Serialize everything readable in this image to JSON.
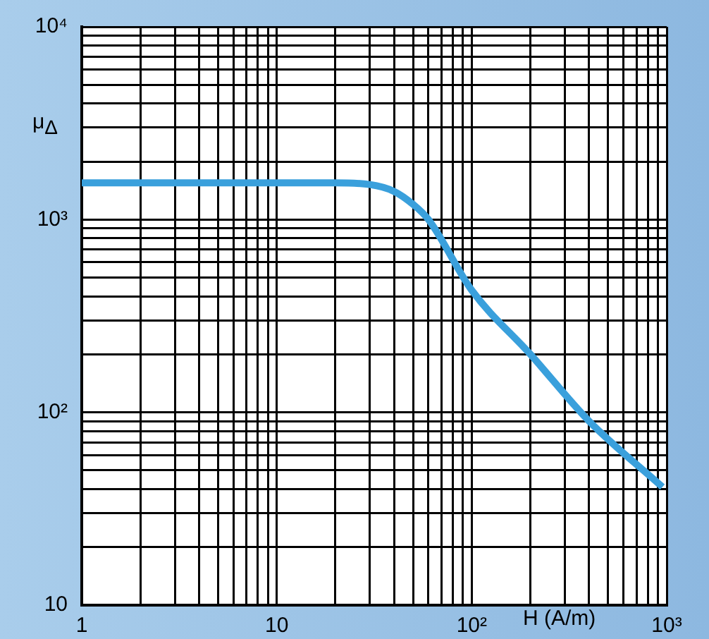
{
  "chart_data": {
    "type": "line",
    "xlabel": "H (A/m)",
    "ylabel": "μ$_{Δ}$",
    "x": [
      1,
      10,
      20,
      30,
      40,
      50,
      60,
      100,
      200,
      400,
      950
    ],
    "series": [
      {
        "color": "#3aa0dc",
        "values": [
          1550,
          1550,
          1550,
          1520,
          1400,
          1200,
          1000,
          430,
          200,
          90,
          41
        ]
      }
    ],
    "log": "xy",
    "grid": true,
    "legend": false,
    "marker": "none",
    "line_style": "solid",
    "xlim": [
      1,
      1000
    ],
    "ylim": [
      10,
      10000
    ],
    "xticks": [
      1,
      {
        "value": 2,
        "label": null
      },
      {
        "value": 3,
        "label": null
      },
      {
        "value": 4,
        "label": null
      },
      {
        "value": 5,
        "label": null
      },
      {
        "value": 6,
        "label": null
      },
      {
        "value": 7,
        "label": null
      },
      {
        "value": 8,
        "label": null
      },
      {
        "value": 9,
        "label": null
      },
      10,
      {
        "value": 20,
        "label": null
      },
      {
        "value": 30,
        "label": null
      },
      {
        "value": 40,
        "label": null
      },
      {
        "value": 50,
        "label": null
      },
      {
        "value": 60,
        "label": null
      },
      {
        "value": 70,
        "label": null
      },
      {
        "value": 80,
        "label": null
      },
      {
        "value": 90,
        "label": null
      },
      {
        "value": 100,
        "label": "10²"
      },
      {
        "value": 200,
        "label": null
      },
      {
        "value": 300,
        "label": null
      },
      {
        "value": 400,
        "label": null
      },
      {
        "value": 500,
        "label": null
      },
      {
        "value": 600,
        "label": null
      },
      {
        "value": 700,
        "label": null
      },
      {
        "value": 800,
        "label": null
      },
      {
        "value": 900,
        "label": null
      },
      {
        "value": 1000,
        "label": "10³"
      }
    ],
    "yticks": [
      10,
      {
        "value": 20,
        "label": null
      },
      {
        "value": 30,
        "label": null
      },
      {
        "value": 40,
        "label": null
      },
      {
        "value": 50,
        "label": null
      },
      {
        "value": 60,
        "label": null
      },
      {
        "value": 70,
        "label": null
      },
      {
        "value": 80,
        "label": null
      },
      {
        "value": 90,
        "label": null
      },
      {
        "value": 100,
        "label": "10²"
      },
      {
        "value": 200,
        "label": null
      },
      {
        "value": 300,
        "label": null
      },
      {
        "value": 400,
        "label": null
      },
      {
        "value": 500,
        "label": null
      },
      {
        "value": 600,
        "label": null
      },
      {
        "value": 700,
        "label": null
      },
      {
        "value": 800,
        "label": null
      },
      {
        "value": 900,
        "label": null
      },
      {
        "value": 1000,
        "label": "10³"
      },
      {
        "value": 2000,
        "label": null
      },
      {
        "value": 3000,
        "label": null
      },
      {
        "value": 4000,
        "label": null
      },
      {
        "value": 5000,
        "label": null
      },
      {
        "value": 6000,
        "label": null
      },
      {
        "value": 7000,
        "label": null
      },
      {
        "value": 8000,
        "label": null
      },
      {
        "value": 9000,
        "label": null
      },
      {
        "value": 10000,
        "label": "10⁴"
      }
    ]
  }
}
